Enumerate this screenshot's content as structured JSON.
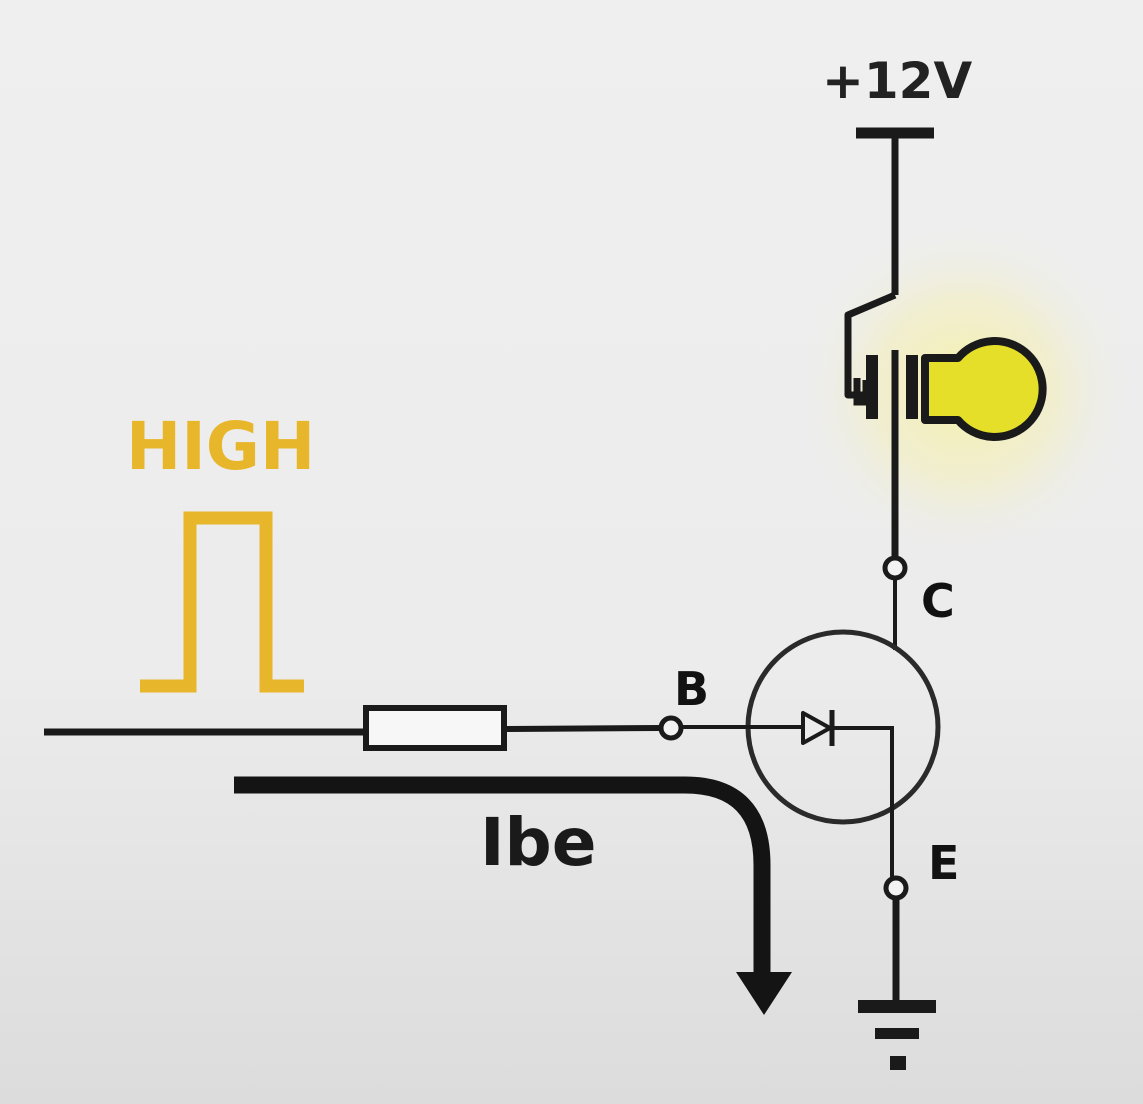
{
  "labels": {
    "supply": "+12V",
    "input_state": "HIGH",
    "collector": "C",
    "base": "B",
    "emitter": "E",
    "current": "Ibe"
  },
  "colors": {
    "wire": "#1a1a1a",
    "signal": "#e8b62a",
    "lamp": "#e6df2a",
    "lamp_glow": "#f4f0a0",
    "background": "#ececec"
  },
  "icons": {
    "lamp": "lamp-icon",
    "ground": "ground-icon",
    "resistor": "resistor-icon",
    "diode": "diode-icon",
    "pulse": "square-pulse-icon",
    "arrow": "current-arrow-icon"
  },
  "state": {
    "lamp_on": true
  }
}
